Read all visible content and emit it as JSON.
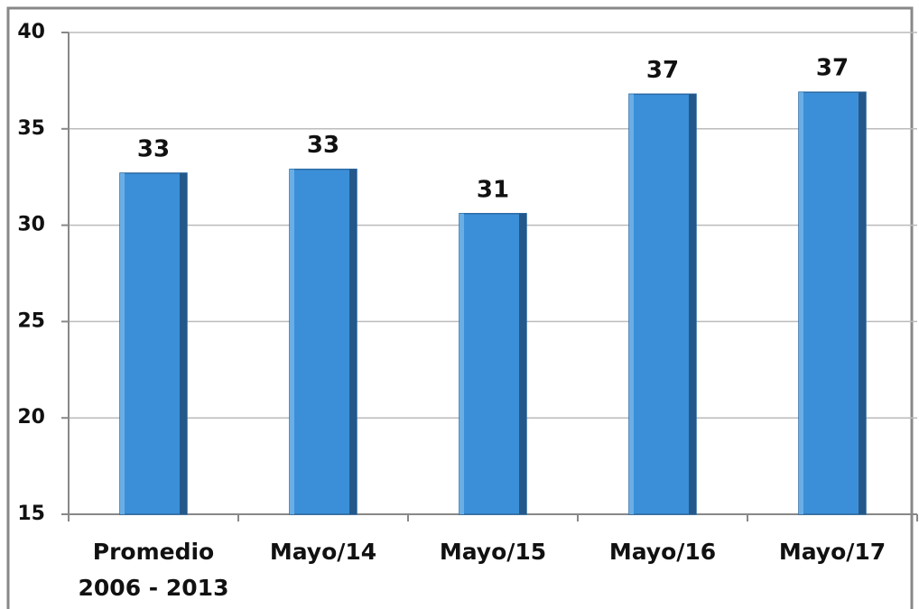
{
  "chart_data": {
    "type": "bar",
    "categories": [
      "Promedio 2006 - 2013",
      "Mayo/14",
      "Mayo/15",
      "Mayo/16",
      "Mayo/17"
    ],
    "values": [
      32.7,
      32.9,
      30.6,
      36.8,
      36.9
    ],
    "value_labels": [
      "33",
      "33",
      "31",
      "37",
      "37"
    ],
    "color": "#3b8fd8",
    "ylim": [
      15,
      40
    ],
    "yticks": [
      15,
      20,
      25,
      30,
      35,
      40
    ],
    "grid": true
  }
}
